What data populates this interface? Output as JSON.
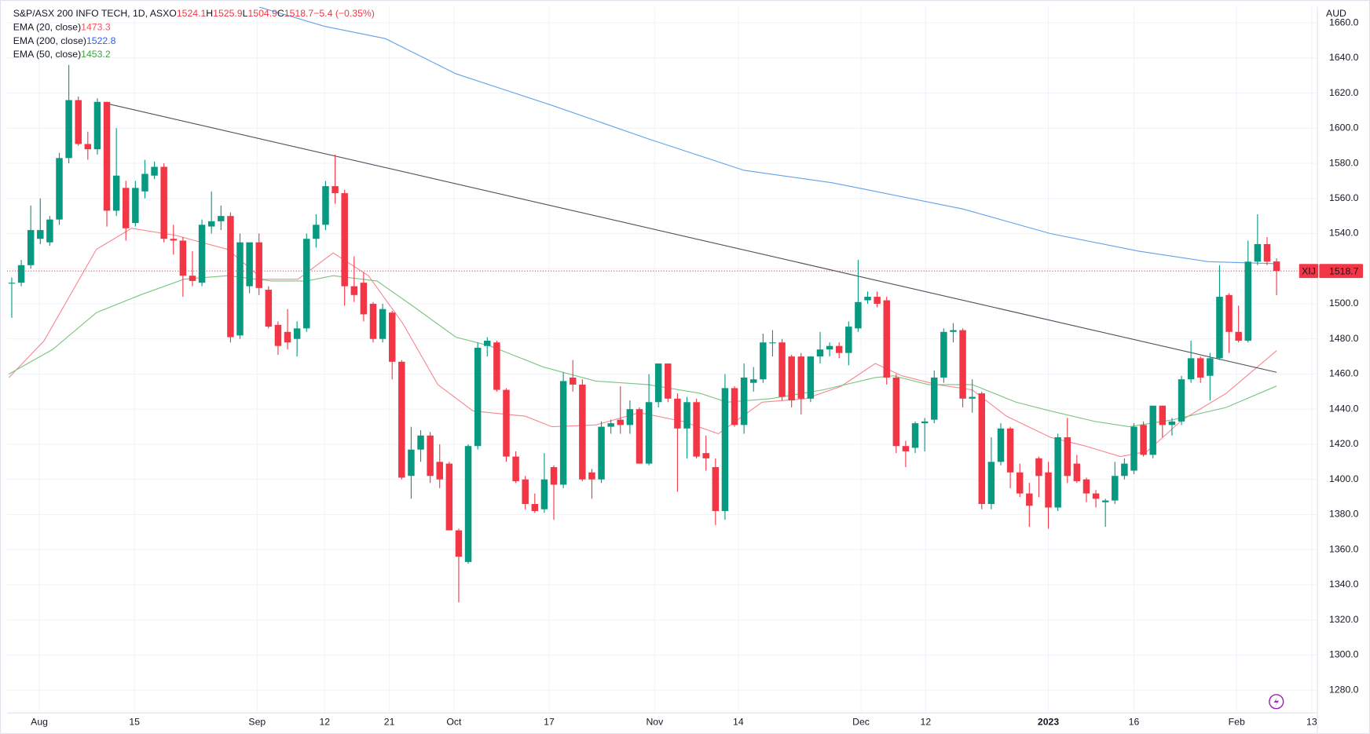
{
  "chart_data": {
    "type": "candlestick",
    "title": "S&P/ASX 200 INFO TECH, 1D, ASX",
    "header_values": [
      {
        "prefix": "O",
        "text": "1524.1"
      },
      {
        "prefix": "H",
        "text": "1525.9"
      },
      {
        "prefix": "L",
        "text": "1504.9"
      },
      {
        "prefix": "C",
        "text": "1518.7"
      },
      {
        "prefix": "",
        "text": "−5.4 (−0.35%)"
      }
    ],
    "currency": "AUD",
    "symbol": "XIJ",
    "last_label": "1518.7",
    "up_color": "#089981",
    "down_color": "#f23645",
    "open": [
      1512,
      1512,
      1522,
      1537,
      1535,
      1548,
      1583,
      1616,
      1591,
      1588,
      1615,
      1553,
      1566,
      1546,
      1564,
      1573,
      1578,
      1537,
      1536,
      1516,
      1512,
      1544,
      1547,
      1550,
      1482,
      1510,
      1535,
      1508,
      1488,
      1484,
      1480,
      1486,
      1537,
      1545,
      1567,
      1563,
      1510,
      1512,
      1500,
      1480,
      1495,
      1467,
      1402,
      1417,
      1425,
      1410,
      1409,
      1371,
      1353,
      1419,
      1476,
      1478,
      1451,
      1413,
      1400,
      1386,
      1383,
      1407,
      1397,
      1458,
      1454,
      1404,
      1400,
      1430,
      1434,
      1431,
      1440,
      1409,
      1444,
      1466,
      1446,
      1429,
      1444,
      1415,
      1407,
      1382,
      1452,
      1431,
      1455,
      1457,
      1478,
      1478,
      1470,
      1470,
      1446,
      1470,
      1474,
      1476,
      1472,
      1486,
      1502,
      1504,
      1502,
      1458,
      1419,
      1418,
      1432,
      1434,
      1458,
      1484,
      1485,
      1446,
      1449,
      1386,
      1410,
      1429,
      1404,
      1392,
      1412,
      1404,
      1384,
      1424,
      1409,
      1400,
      1392,
      1387,
      1388,
      1402,
      1405,
      1431,
      1414,
      1442,
      1431,
      1433,
      1457,
      1469,
      1459,
      1469,
      1505,
      1484,
      1479,
      1524,
      1534,
      1524.1
    ],
    "high": [
      1515,
      1525,
      1556,
      1560,
      1550,
      1586,
      1636,
      1618,
      1598,
      1617,
      1615,
      1600,
      1570,
      1570,
      1582,
      1581,
      1580,
      1545,
      1538,
      1530,
      1548,
      1564,
      1556,
      1552,
      1540,
      1535,
      1540,
      1510,
      1490,
      1497,
      1490,
      1540,
      1551,
      1570,
      1585,
      1565,
      1527,
      1518,
      1501,
      1500,
      1496,
      1468,
      1430,
      1428,
      1427,
      1420,
      1410,
      1372,
      1420,
      1478,
      1481,
      1479,
      1452,
      1416,
      1402,
      1392,
      1415,
      1408,
      1461,
      1468,
      1457,
      1406,
      1433,
      1434,
      1453,
      1445,
      1441,
      1460,
      1466,
      1466,
      1449,
      1447,
      1446,
      1425,
      1412,
      1460,
      1453,
      1466,
      1464,
      1483,
      1485,
      1480,
      1471,
      1472,
      1470,
      1484,
      1478,
      1478,
      1490,
      1525,
      1507,
      1507,
      1504,
      1460,
      1422,
      1433,
      1435,
      1462,
      1486,
      1489,
      1486,
      1457,
      1450,
      1424,
      1432,
      1430,
      1409,
      1398,
      1413,
      1410,
      1426,
      1435,
      1414,
      1401,
      1394,
      1389,
      1410,
      1412,
      1432,
      1433,
      1442,
      1442,
      1435,
      1459,
      1479,
      1470,
      1472,
      1522,
      1506,
      1499,
      1536,
      1551,
      1538,
      1525.9
    ],
    "low": [
      1492,
      1510,
      1520,
      1534,
      1533,
      1545,
      1580,
      1590,
      1582,
      1585,
      1544,
      1550,
      1536,
      1544,
      1560,
      1571,
      1535,
      1528,
      1504,
      1510,
      1510,
      1540,
      1542,
      1478,
      1480,
      1506,
      1505,
      1486,
      1471,
      1474,
      1470,
      1484,
      1532,
      1542,
      1557,
      1499,
      1501,
      1490,
      1478,
      1478,
      1457,
      1400,
      1389,
      1410,
      1398,
      1395,
      1371,
      1330,
      1352,
      1417,
      1470,
      1450,
      1410,
      1398,
      1383,
      1381,
      1381,
      1377,
      1395,
      1450,
      1399,
      1389,
      1398,
      1426,
      1426,
      1426,
      1409,
      1408,
      1441,
      1444,
      1393,
      1412,
      1412,
      1405,
      1374,
      1377,
      1430,
      1426,
      1450,
      1455,
      1470,
      1445,
      1441,
      1437,
      1444,
      1466,
      1470,
      1469,
      1465,
      1484,
      1500,
      1498,
      1454,
      1415,
      1407,
      1415,
      1416,
      1432,
      1455,
      1478,
      1441,
      1438,
      1383,
      1383,
      1408,
      1395,
      1390,
      1373,
      1390,
      1372,
      1382,
      1398,
      1398,
      1387,
      1384,
      1373,
      1386,
      1400,
      1403,
      1413,
      1412,
      1424,
      1425,
      1431,
      1455,
      1455,
      1445,
      1468,
      1472,
      1478,
      1478,
      1522,
      1522,
      1504.9
    ],
    "close": [
      1512,
      1522,
      1542,
      1542,
      1548,
      1583,
      1616,
      1591,
      1588,
      1615,
      1553,
      1573,
      1543,
      1566,
      1574,
      1578,
      1537,
      1536,
      1516,
      1513,
      1545,
      1547,
      1550,
      1481,
      1535,
      1535,
      1509,
      1487,
      1476,
      1478,
      1486,
      1537,
      1545,
      1567,
      1563,
      1510,
      1505,
      1494,
      1480,
      1497,
      1467,
      1401,
      1417,
      1425,
      1402,
      1400,
      1371,
      1356,
      1419,
      1475,
      1479,
      1451,
      1413,
      1399,
      1386,
      1382,
      1400,
      1397,
      1456,
      1454,
      1400,
      1400,
      1430,
      1432,
      1431,
      1440,
      1409,
      1444,
      1466,
      1446,
      1429,
      1444,
      1413,
      1412,
      1382,
      1452,
      1431,
      1458,
      1457,
      1478,
      1478,
      1447,
      1445,
      1446,
      1470,
      1474,
      1476,
      1472,
      1487,
      1501,
      1504,
      1500,
      1458,
      1419,
      1416,
      1432,
      1433,
      1458,
      1484,
      1485,
      1446,
      1447,
      1386,
      1410,
      1429,
      1404,
      1392,
      1385,
      1402,
      1384,
      1424,
      1402,
      1399,
      1392,
      1389,
      1388,
      1402,
      1409,
      1430,
      1414,
      1442,
      1431,
      1433,
      1457,
      1469,
      1458,
      1469,
      1504,
      1484,
      1479,
      1524,
      1534,
      1524,
      1518.7
    ],
    "series": [
      {
        "name": "EMA (20, close)",
        "color": "#f7525f",
        "last_label": "1473.3",
        "x": [
          -0.3,
          3.4,
          8.9,
          12.6,
          17.2,
          22.7,
          26.4,
          30.1,
          33.8,
          37.5,
          41.1,
          44.8,
          48.5,
          54,
          56.8,
          61.4,
          66,
          70.6,
          74.3,
          78.9,
          83.5,
          87.2,
          90.8,
          93.6,
          97.3,
          101,
          104.6,
          109.2,
          112.9,
          116.6,
          119.4,
          123.1,
          127.7,
          133
        ],
        "values": [
          1458,
          1479,
          1531,
          1543,
          1539,
          1531,
          1514,
          1514,
          1529,
          1516,
          1489,
          1454,
          1439,
          1436,
          1430,
          1431,
          1438,
          1433,
          1426,
          1444,
          1446,
          1453,
          1466,
          1459,
          1454,
          1451,
          1436,
          1424,
          1419,
          1413,
          1416,
          1434,
          1449,
          1473.3
        ]
      },
      {
        "name": "EMA (200, close)",
        "color": "#2962ff",
        "line_color": "#64a0e8",
        "last_label": "1522.8",
        "x": [
          26,
          32.9,
          39.3,
          46.7,
          56.8,
          66.9,
          77,
          86.2,
          89.9,
          100,
          109.2,
          118.5,
          125.8,
          133
        ],
        "values": [
          1669,
          1658,
          1651,
          1631,
          1613,
          1594,
          1576,
          1569,
          1565,
          1554,
          1540,
          1530,
          1524,
          1522.8
        ]
      },
      {
        "name": "EMA (50, close)",
        "color": "#43a047",
        "line_color": "#7cc47f",
        "last_label": "1453.2",
        "x": [
          -0.3,
          4.3,
          8.9,
          13.5,
          18.1,
          22.7,
          27.3,
          31,
          33.8,
          38.4,
          42.1,
          46.7,
          50.3,
          55.9,
          61.4,
          66.9,
          72.4,
          75.2,
          79.8,
          85.3,
          90.8,
          92.7,
          96.4,
          101,
          105.6,
          109.2,
          113.9,
          117.5,
          122.1,
          127.7,
          133
        ],
        "values": [
          1460,
          1474,
          1495,
          1505,
          1514,
          1516,
          1513,
          1513,
          1516,
          1513,
          1499,
          1481,
          1476,
          1464,
          1456,
          1454,
          1449,
          1444,
          1446,
          1451,
          1458,
          1459,
          1454,
          1454,
          1444,
          1439,
          1433,
          1430,
          1434,
          1441,
          1453.2
        ]
      }
    ],
    "trendline": {
      "x": [
        10,
        133
      ],
      "values": [
        1614,
        1461
      ],
      "color": "#131722"
    },
    "xlim": [
      -0.5,
      137.3
    ],
    "xticks": [
      {
        "value": 2.9,
        "label": "Aug"
      },
      {
        "value": 12.9,
        "label": "15"
      },
      {
        "value": 25.8,
        "label": "Sep"
      },
      {
        "value": 32.9,
        "label": "12"
      },
      {
        "value": 39.7,
        "label": "21"
      },
      {
        "value": 46.5,
        "label": "Oct"
      },
      {
        "value": 56.5,
        "label": "17"
      },
      {
        "value": 67.6,
        "label": "Nov"
      },
      {
        "value": 76.4,
        "label": "14"
      },
      {
        "value": 89.3,
        "label": "Dec"
      },
      {
        "value": 96.1,
        "label": "12"
      },
      {
        "value": 109,
        "label": "2023"
      },
      {
        "value": 118,
        "label": "16"
      },
      {
        "value": 128.8,
        "label": "Feb"
      },
      {
        "value": 136.7,
        "label": "13"
      }
    ],
    "ylim": [
      1267,
      1669
    ],
    "yticks": [
      {
        "value": 1280,
        "label": "1280.0"
      },
      {
        "value": 1300,
        "label": "1300.0"
      },
      {
        "value": 1320,
        "label": "1320.0"
      },
      {
        "value": 1340,
        "label": "1340.0"
      },
      {
        "value": 1360,
        "label": "1360.0"
      },
      {
        "value": 1380,
        "label": "1380.0"
      },
      {
        "value": 1400,
        "label": "1400.0"
      },
      {
        "value": 1420,
        "label": "1420.0"
      },
      {
        "value": 1440,
        "label": "1440.0"
      },
      {
        "value": 1460,
        "label": "1460.0"
      },
      {
        "value": 1480,
        "label": "1480.0"
      },
      {
        "value": 1500,
        "label": "1500.0"
      },
      {
        "value": 1520,
        "label": "1520.0"
      },
      {
        "value": 1540,
        "label": "1540.0"
      },
      {
        "value": 1560,
        "label": "1560.0"
      },
      {
        "value": 1580,
        "label": "1580.0"
      },
      {
        "value": 1600,
        "label": "1600.0"
      },
      {
        "value": 1620,
        "label": "1620.0"
      },
      {
        "value": 1640,
        "label": "1640.0"
      },
      {
        "value": 1660,
        "label": "1660.0"
      }
    ],
    "grid": true
  }
}
